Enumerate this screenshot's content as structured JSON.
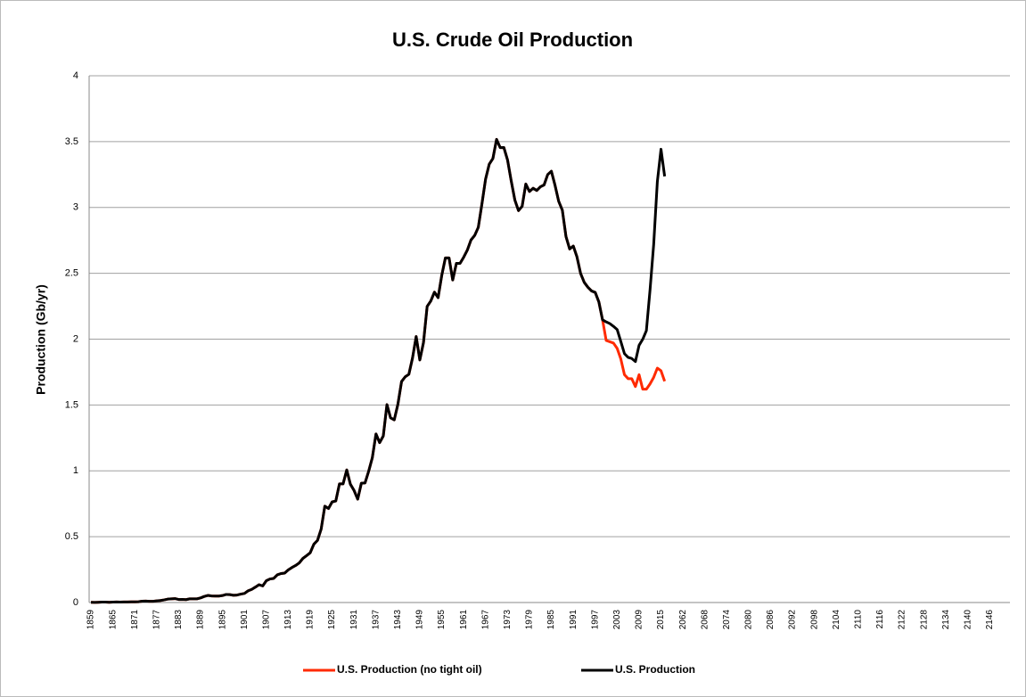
{
  "chart_data": {
    "type": "line",
    "title": "U.S. Crude Oil Production",
    "y_label": "Production (Gb/yr)",
    "categories": [
      "1859",
      null,
      null,
      null,
      null,
      null,
      "1865",
      null,
      null,
      null,
      null,
      null,
      "1871",
      null,
      null,
      null,
      null,
      null,
      "1877",
      null,
      null,
      null,
      null,
      null,
      "1883",
      null,
      null,
      null,
      null,
      null,
      "1889",
      null,
      null,
      null,
      null,
      null,
      "1895",
      null,
      null,
      null,
      null,
      null,
      "1901",
      null,
      null,
      null,
      null,
      null,
      "1907",
      null,
      null,
      null,
      null,
      null,
      "1913",
      null,
      null,
      null,
      null,
      null,
      "1919",
      null,
      null,
      null,
      null,
      null,
      "1925",
      null,
      null,
      null,
      null,
      null,
      "1931",
      null,
      null,
      null,
      null,
      null,
      "1937",
      null,
      null,
      null,
      null,
      null,
      "1943",
      null,
      null,
      null,
      null,
      null,
      "1949",
      null,
      null,
      null,
      null,
      null,
      "1955",
      null,
      null,
      null,
      null,
      null,
      "1961",
      null,
      null,
      null,
      null,
      null,
      "1967",
      null,
      null,
      null,
      null,
      null,
      "1973",
      null,
      null,
      null,
      null,
      null,
      "1979",
      null,
      null,
      null,
      null,
      null,
      "1985",
      null,
      null,
      null,
      null,
      null,
      "1991",
      null,
      null,
      null,
      null,
      null,
      "1997",
      null,
      null,
      null,
      null,
      null,
      "2003",
      null,
      null,
      null,
      null,
      null,
      "2009",
      null,
      null,
      null,
      null,
      null,
      "2015",
      null,
      null,
      null,
      null,
      null,
      "2062",
      null,
      null,
      null,
      null,
      null,
      "2068",
      null,
      null,
      null,
      null,
      null,
      "2074",
      null,
      null,
      null,
      null,
      null,
      "2080",
      null,
      null,
      null,
      null,
      null,
      "2086",
      null,
      null,
      null,
      null,
      null,
      "2092",
      null,
      null,
      null,
      null,
      null,
      "2098",
      null,
      null,
      null,
      null,
      null,
      "2104",
      null,
      null,
      null,
      null,
      null,
      "2110",
      null,
      null,
      null,
      null,
      null,
      "2116",
      null,
      null,
      null,
      null,
      null,
      "2122",
      null,
      null,
      null,
      null,
      null,
      "2128",
      null,
      null,
      null,
      null,
      null,
      "2134",
      null,
      null,
      null,
      null,
      null,
      "2140",
      null,
      null,
      null,
      null,
      null,
      "2146",
      null,
      null,
      null,
      null,
      null
    ],
    "series": [
      {
        "name": "U.S. Production (no tight oil)",
        "color": "#ff2a00",
        "values": [
          0.002,
          0.001,
          0.002,
          0.003,
          0.003,
          0.002,
          0.003,
          0.004,
          0.003,
          0.004,
          0.004,
          0.005,
          0.005,
          0.006,
          0.01,
          0.011,
          0.009,
          0.009,
          0.013,
          0.015,
          0.02,
          0.026,
          0.028,
          0.03,
          0.023,
          0.024,
          0.022,
          0.028,
          0.028,
          0.028,
          0.035,
          0.046,
          0.054,
          0.05,
          0.049,
          0.049,
          0.053,
          0.061,
          0.06,
          0.055,
          0.057,
          0.064,
          0.069,
          0.089,
          0.1,
          0.117,
          0.135,
          0.126,
          0.166,
          0.179,
          0.183,
          0.21,
          0.22,
          0.223,
          0.248,
          0.266,
          0.281,
          0.301,
          0.335,
          0.356,
          0.378,
          0.443,
          0.472,
          0.558,
          0.732,
          0.714,
          0.764,
          0.771,
          0.901,
          0.901,
          1.007,
          0.898,
          0.851,
          0.785,
          0.906,
          0.908,
          0.997,
          1.1,
          1.28,
          1.214,
          1.265,
          1.503,
          1.402,
          1.387,
          1.506,
          1.678,
          1.714,
          1.733,
          1.857,
          2.02,
          1.842,
          1.974,
          2.248,
          2.29,
          2.357,
          2.315,
          2.484,
          2.617,
          2.617,
          2.449,
          2.575,
          2.575,
          2.622,
          2.676,
          2.753,
          2.787,
          2.849,
          3.028,
          3.216,
          3.329,
          3.372,
          3.517,
          3.454,
          3.455,
          3.361,
          3.203,
          3.057,
          2.976,
          3.009,
          3.178,
          3.121,
          3.146,
          3.129,
          3.157,
          3.171,
          3.25,
          3.275,
          3.168,
          3.047,
          2.979,
          2.779,
          2.685,
          2.707,
          2.625,
          2.499,
          2.431,
          2.394,
          2.366,
          2.355,
          2.282,
          2.147,
          1.99,
          1.98,
          1.97,
          1.93,
          1.85,
          1.73,
          1.7,
          1.7,
          1.64,
          1.73,
          1.62,
          1.62,
          1.66,
          1.71,
          1.78,
          1.76,
          1.68,
          null,
          null,
          null,
          null,
          null,
          null,
          null,
          null,
          null,
          null,
          null,
          null,
          null,
          null,
          null,
          null,
          null,
          null,
          null,
          null,
          null,
          null,
          null,
          null,
          null,
          null,
          null,
          null,
          null,
          null,
          null,
          null,
          null,
          null,
          null,
          null,
          null,
          null,
          null,
          null,
          null,
          null,
          null,
          null,
          null,
          null,
          null,
          null,
          null,
          null,
          null,
          null,
          null,
          null,
          null,
          null,
          null,
          null,
          null,
          null,
          null,
          null,
          null,
          null,
          null,
          null,
          null,
          null,
          null,
          null,
          null,
          null,
          null,
          null,
          null,
          null,
          null,
          null,
          null,
          null,
          null,
          null,
          null,
          null,
          null,
          null,
          null,
          null,
          null,
          null,
          null,
          null,
          null,
          null
        ]
      },
      {
        "name": "U.S. Production",
        "color": "#000000",
        "values": [
          0.002,
          0.001,
          0.002,
          0.003,
          0.003,
          0.002,
          0.003,
          0.004,
          0.003,
          0.004,
          0.004,
          0.005,
          0.005,
          0.006,
          0.01,
          0.011,
          0.009,
          0.009,
          0.013,
          0.015,
          0.02,
          0.026,
          0.028,
          0.03,
          0.023,
          0.024,
          0.022,
          0.028,
          0.028,
          0.028,
          0.035,
          0.046,
          0.054,
          0.05,
          0.049,
          0.049,
          0.053,
          0.061,
          0.06,
          0.055,
          0.057,
          0.064,
          0.069,
          0.089,
          0.1,
          0.117,
          0.135,
          0.126,
          0.166,
          0.179,
          0.183,
          0.21,
          0.22,
          0.223,
          0.248,
          0.266,
          0.281,
          0.301,
          0.335,
          0.356,
          0.378,
          0.443,
          0.472,
          0.558,
          0.732,
          0.714,
          0.764,
          0.771,
          0.901,
          0.901,
          1.007,
          0.898,
          0.851,
          0.785,
          0.906,
          0.908,
          0.997,
          1.1,
          1.28,
          1.214,
          1.265,
          1.503,
          1.402,
          1.387,
          1.506,
          1.678,
          1.714,
          1.733,
          1.857,
          2.02,
          1.842,
          1.974,
          2.248,
          2.29,
          2.357,
          2.315,
          2.484,
          2.617,
          2.617,
          2.449,
          2.575,
          2.575,
          2.622,
          2.676,
          2.753,
          2.787,
          2.849,
          3.028,
          3.216,
          3.329,
          3.372,
          3.517,
          3.454,
          3.455,
          3.361,
          3.203,
          3.057,
          2.976,
          3.009,
          3.178,
          3.121,
          3.146,
          3.129,
          3.157,
          3.171,
          3.25,
          3.275,
          3.168,
          3.047,
          2.979,
          2.779,
          2.685,
          2.707,
          2.625,
          2.499,
          2.431,
          2.394,
          2.366,
          2.355,
          2.282,
          2.147,
          2.131,
          2.118,
          2.097,
          2.073,
          1.983,
          1.89,
          1.862,
          1.853,
          1.83,
          1.953,
          1.999,
          2.065,
          2.374,
          2.72,
          3.196,
          3.442,
          3.236,
          null,
          null,
          null,
          null,
          null,
          null,
          null,
          null,
          null,
          null,
          null,
          null,
          null,
          null,
          null,
          null,
          null,
          null,
          null,
          null,
          null,
          null,
          null,
          null,
          null,
          null,
          null,
          null,
          null,
          null,
          null,
          null,
          null,
          null,
          null,
          null,
          null,
          null,
          null,
          null,
          null,
          null,
          null,
          null,
          null,
          null,
          null,
          null,
          null,
          null,
          null,
          null,
          null,
          null,
          null,
          null,
          null,
          null,
          null,
          null,
          null,
          null,
          null,
          null,
          null,
          null,
          null,
          null,
          null,
          null,
          null,
          null,
          null,
          null,
          null,
          null,
          null,
          null,
          null,
          null,
          null,
          null,
          null,
          null,
          null,
          null,
          null,
          null,
          null,
          null,
          null,
          null,
          null,
          null
        ]
      }
    ],
    "ylim": [
      0,
      4
    ],
    "yticks": [
      0,
      0.5,
      1,
      1.5,
      2,
      2.5,
      3,
      3.5,
      4
    ],
    "grid": true,
    "legend": "bottom"
  }
}
